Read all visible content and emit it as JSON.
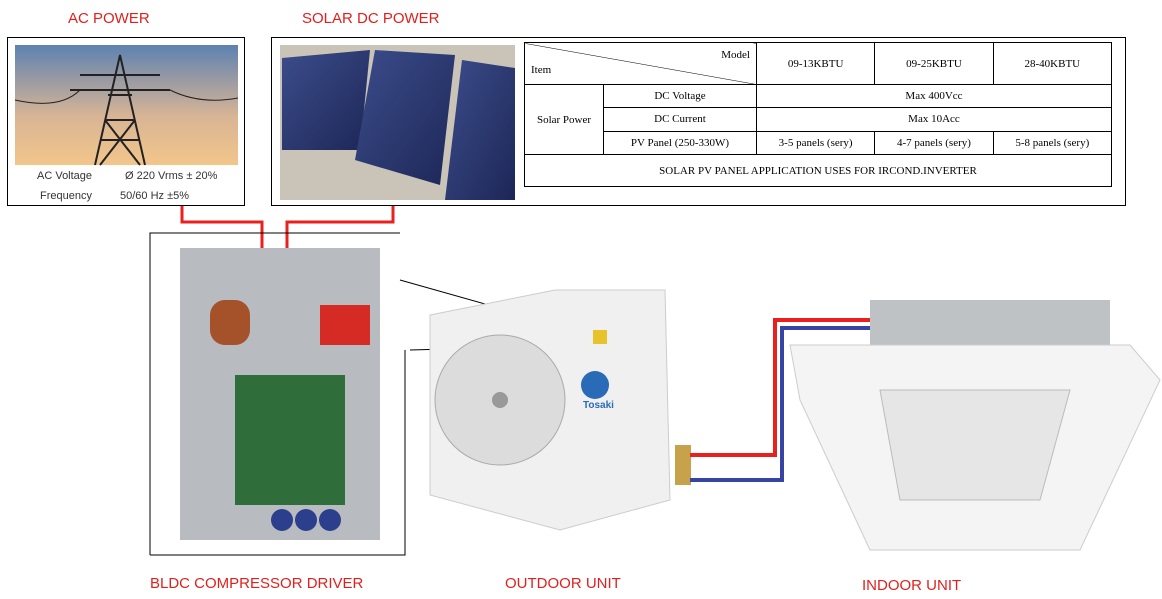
{
  "labels": {
    "ac_power": "AC POWER",
    "solar_dc_power": "SOLAR DC POWER",
    "driver": "BLDC COMPRESSOR DRIVER",
    "outdoor": "OUTDOOR UNIT",
    "indoor": "INDOOR UNIT"
  },
  "ac_specs": [
    [
      "AC Voltage",
      "Ø  220 Vrms ± 20%"
    ],
    [
      "Frequency",
      "50/60 Hz  ±5%"
    ]
  ],
  "brand": "Tosaki",
  "table": {
    "item": "Item",
    "model": "Model",
    "columns": [
      "09-13KBTU",
      "09-25KBTU",
      "28-40KBTU"
    ],
    "group": "Solar Power",
    "rows": [
      [
        "DC Voltage",
        "Max 400Vcc"
      ],
      [
        "DC Current",
        "Max 10Acc"
      ],
      [
        "PV Panel (250-330W)",
        "3-5 panels (sery)",
        "4-7 panels (sery)",
        "5-8 panels (sery)"
      ]
    ],
    "footer": "SOLAR PV PANEL APPLICATION USES FOR IRCOND.INVERTER"
  }
}
